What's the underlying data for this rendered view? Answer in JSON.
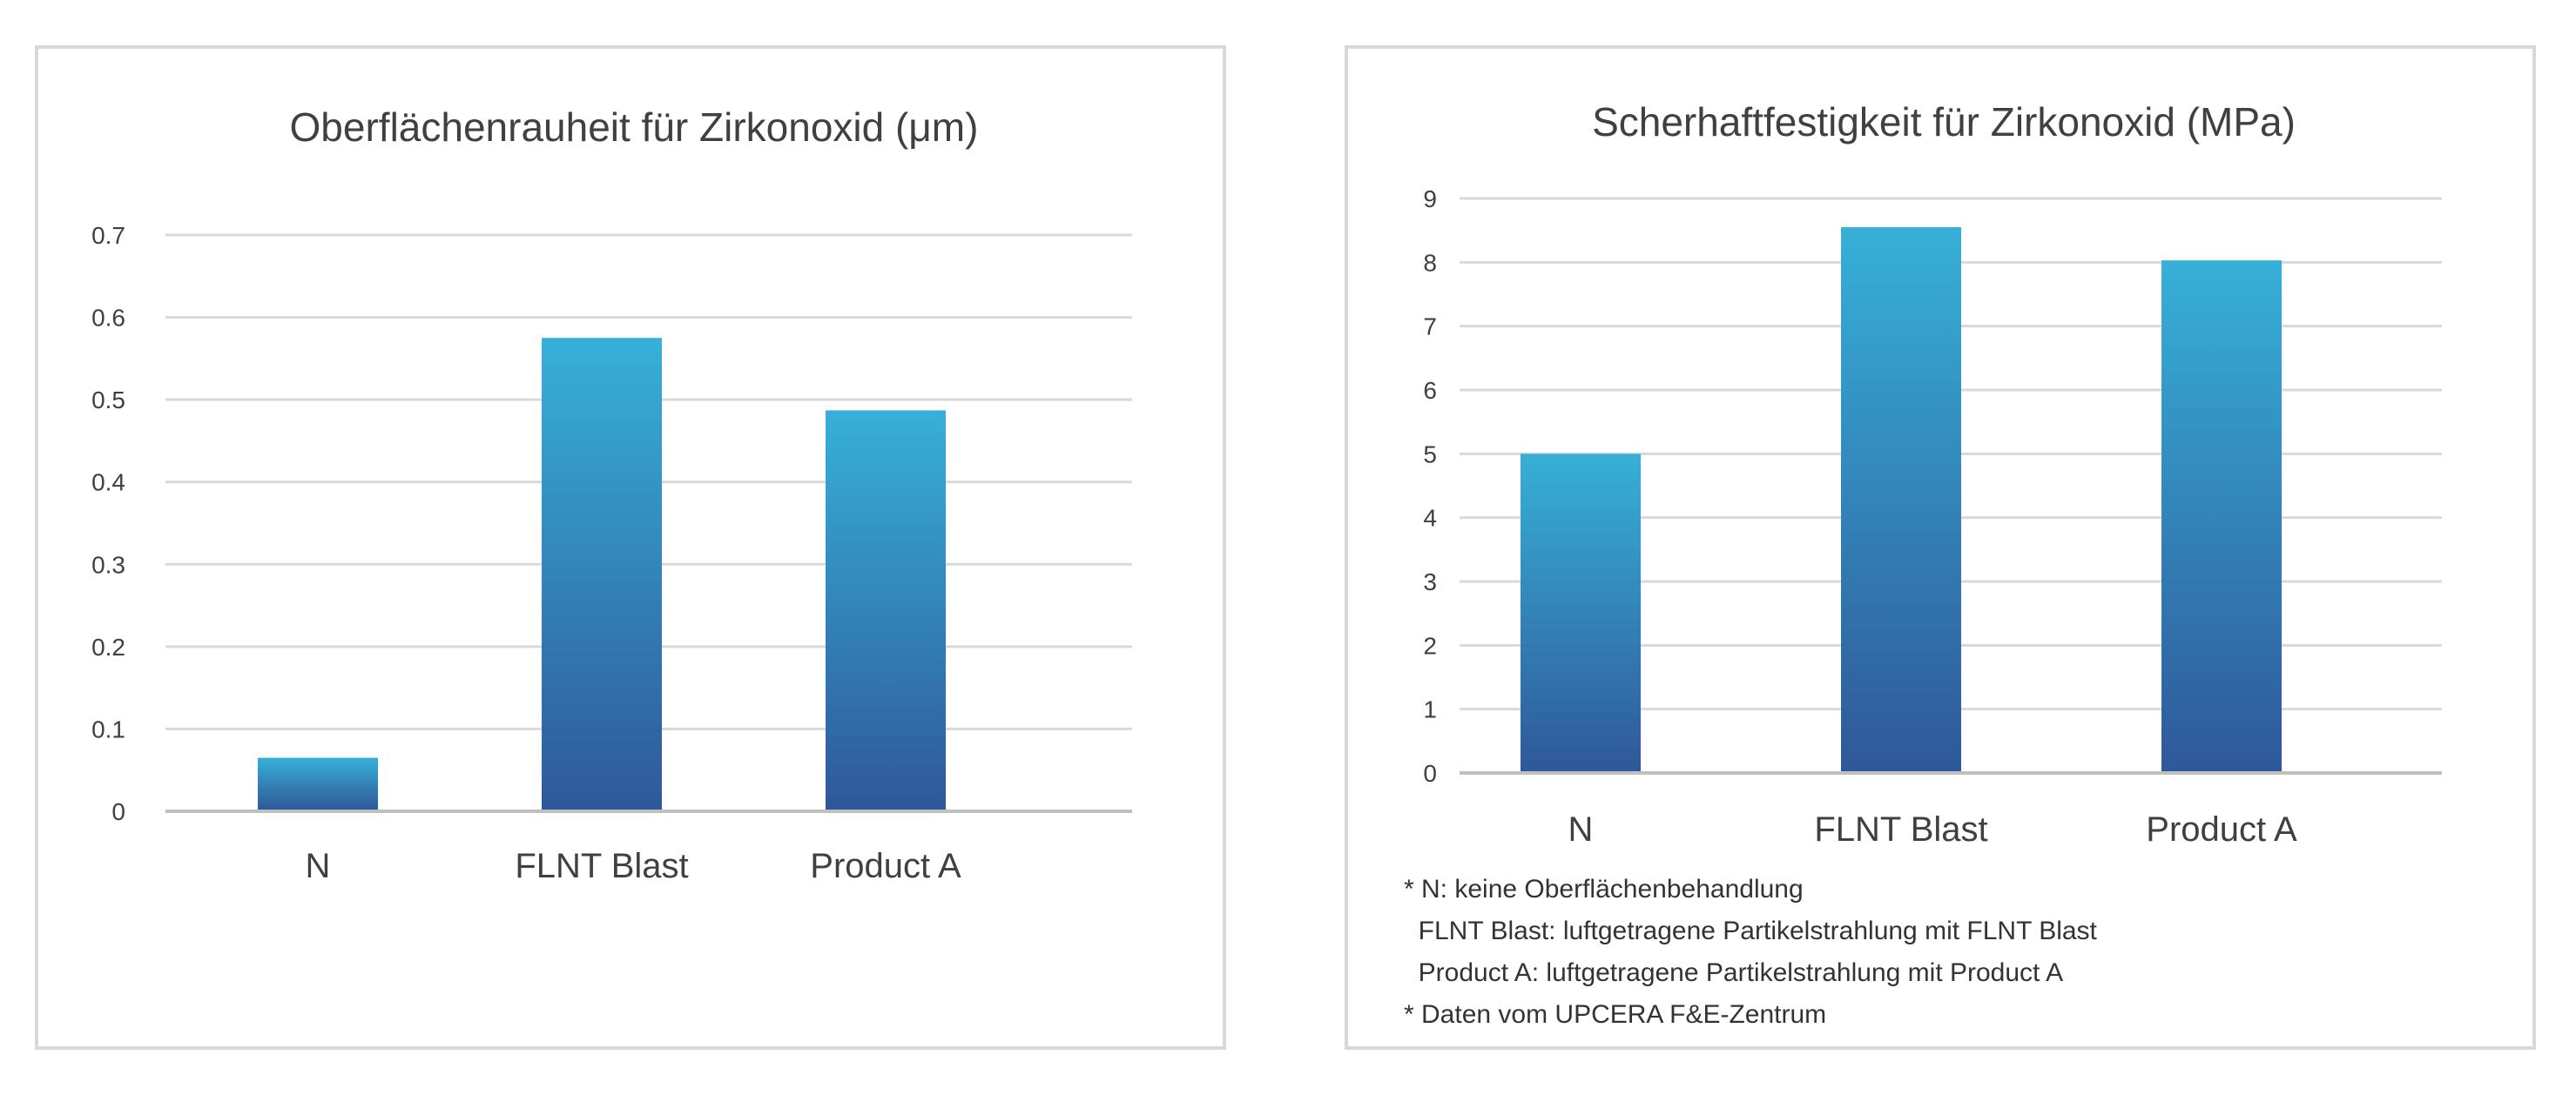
{
  "colors": {
    "bar_top": "#37b0d8",
    "bar_bottom": "#2f5898",
    "grid": "#d9d9d9",
    "text": "#404040"
  },
  "chart_data": [
    {
      "type": "bar",
      "title": "Oberflächenrauheit für Zirkonoxid (μm)",
      "categories": [
        "N",
        "FLNT Blast",
        "Product A"
      ],
      "values": [
        0.065,
        0.575,
        0.487
      ],
      "ylim": [
        0,
        0.7
      ],
      "yticks": [
        "0",
        "0.1",
        "0.2",
        "0.3",
        "0.4",
        "0.5",
        "0.6",
        "0.7"
      ],
      "xlabel": "",
      "ylabel": "",
      "grid": true,
      "legend": "none"
    },
    {
      "type": "bar",
      "title": "Scherhaftfestigkeit für Zirkonoxid (MPa)",
      "categories": [
        "N",
        "FLNT Blast",
        "Product A"
      ],
      "values": [
        5.0,
        8.55,
        8.03
      ],
      "ylim": [
        0,
        9
      ],
      "yticks": [
        "0",
        "1",
        "2",
        "3",
        "4",
        "5",
        "6",
        "7",
        "8",
        "9"
      ],
      "xlabel": "",
      "ylabel": "",
      "grid": true,
      "legend": "none"
    }
  ],
  "footnotes": [
    "* N: keine Oberflächenbehandlung",
    "  FLNT Blast: luftgetragene Partikelstrahlung mit FLNT Blast",
    "  Product A: luftgetragene Partikelstrahlung mit Product A",
    "* Daten vom UPCERA F&E-Zentrum"
  ]
}
